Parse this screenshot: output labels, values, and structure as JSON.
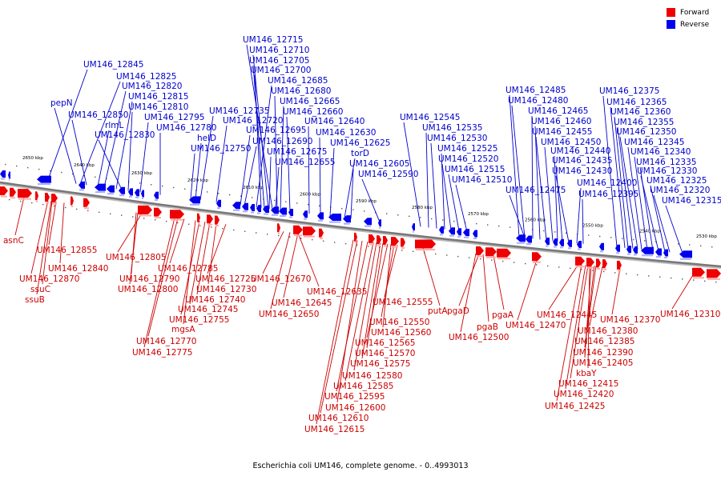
{
  "caption": "Escherichia coli UM146, complete genome. - 0..4993013",
  "legend": {
    "forward_label": "Forward",
    "reverse_label": "Reverse",
    "forward_color": "#ee0000",
    "reverse_color": "#0000ee"
  },
  "ruler_labels": [
    "2650 kbp",
    "2640 kbp",
    "2630 kbp",
    "2620 kbp",
    "2610 kbp",
    "2600 kbp",
    "2590 kbp",
    "2580 kbp",
    "2570 kbp",
    "2560 kbp",
    "2550 kbp",
    "2540 kbp",
    "2530 kbp"
  ],
  "reverse_genes": [
    "UM146_12715",
    "UM146_12710",
    "UM146_12705",
    "UM146_12700",
    "UM146_12845",
    "UM146_12825",
    "UM146_12685",
    "UM146_12820",
    "UM146_12680",
    "UM146_12815",
    "UM146_12665",
    "pepN",
    "UM146_12810",
    "UM146_12735",
    "UM146_12660",
    "UM146_12850",
    "UM146_12795",
    "UM146_12720",
    "UM146_12640",
    "rlmL",
    "UM146_12780",
    "UM146_12695",
    "UM146_12830",
    "helD",
    "UM146_12690",
    "UM146_12750",
    "UM146_12675",
    "UM146_12655",
    "UM146_12630",
    "UM146_12625",
    "torD",
    "UM146_12605",
    "UM146_12590",
    "UM146_12545",
    "UM146_12535",
    "UM146_12530",
    "UM146_12525",
    "UM146_12520",
    "UM146_12515",
    "UM146_12510",
    "UM146_12485",
    "UM146_12480",
    "UM146_12465",
    "UM146_12460",
    "UM146_12455",
    "UM146_12450",
    "UM146_12440",
    "UM146_12435",
    "UM146_12430",
    "UM146_12475",
    "UM146_12400",
    "UM146_12395",
    "UM146_12375",
    "UM146_12365",
    "UM146_12360",
    "UM146_12355",
    "UM146_12350",
    "UM146_12345",
    "UM146_12340",
    "UM146_12335",
    "UM146_12330",
    "UM146_12325",
    "UM146_12320",
    "UM146_12315"
  ],
  "forward_genes": [
    "asnC",
    "UM146_12855",
    "UM146_12840",
    "UM146_12870",
    "ssuC",
    "ssuB",
    "UM146_12805",
    "UM146_12785",
    "UM146_12790",
    "UM146_12800",
    "UM146_12725",
    "UM146_12730",
    "UM146_12740",
    "UM146_12745",
    "UM146_12755",
    "mgsA",
    "UM146_12770",
    "UM146_12775",
    "UM146_12670",
    "UM146_12635",
    "UM146_12645",
    "UM146_12650",
    "UM146_12555",
    "UM146_12550",
    "UM146_12560",
    "UM146_12565",
    "UM146_12570",
    "UM146_12575",
    "UM146_12580",
    "UM146_12585",
    "UM146_12595",
    "UM146_12600",
    "UM146_12610",
    "UM146_12615",
    "putA",
    "pgaD",
    "pgaB",
    "pgaA",
    "UM146_12500",
    "UM146_12470",
    "UM146_12445",
    "UM146_12370",
    "UM146_12380",
    "UM146_12385",
    "UM146_12390",
    "UM146_12405",
    "kbaY",
    "UM146_12415",
    "UM146_12420",
    "UM146_12425",
    "UM146_12310"
  ]
}
